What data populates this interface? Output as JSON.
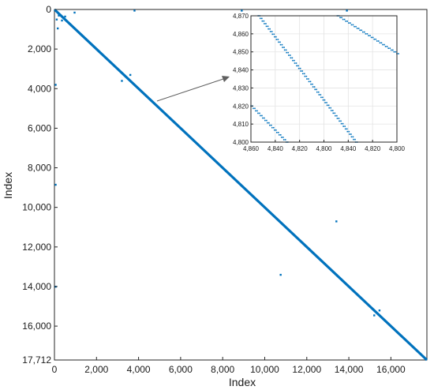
{
  "colors": {
    "marker": "#0072BD",
    "axis": "#262626",
    "grid": "#e3e3e3",
    "arrow": "#606060"
  },
  "chart_data": [
    {
      "type": "scatter",
      "xlabel": "Index",
      "ylabel": "Index",
      "xlim": [
        0,
        17712
      ],
      "ylim": [
        0,
        17712
      ],
      "y_reversed": true,
      "grid": false,
      "xticks": [
        {
          "value": 0,
          "label": "0"
        },
        {
          "value": 2000,
          "label": "2,000"
        },
        {
          "value": 4000,
          "label": "4,000"
        },
        {
          "value": 6000,
          "label": "6,000"
        },
        {
          "value": 8000,
          "label": "8,000"
        },
        {
          "value": 10000,
          "label": "10,000"
        },
        {
          "value": 12000,
          "label": "12,000"
        },
        {
          "value": 14000,
          "label": "14,000"
        },
        {
          "value": 16000,
          "label": "16,000"
        }
      ],
      "yticks": [
        {
          "value": 0,
          "label": "0"
        },
        {
          "value": 2000,
          "label": "2,000"
        },
        {
          "value": 4000,
          "label": "4,000"
        },
        {
          "value": 6000,
          "label": "6,000"
        },
        {
          "value": 8000,
          "label": "8,000"
        },
        {
          "value": 10000,
          "label": "10,000"
        },
        {
          "value": 12000,
          "label": "12,000"
        },
        {
          "value": 14000,
          "label": "14,000"
        },
        {
          "value": 16000,
          "label": "16,000"
        },
        {
          "value": 17712,
          "label": "17,712"
        }
      ],
      "diagonal": {
        "from": [
          0,
          0
        ],
        "to": [
          17712,
          17712
        ]
      },
      "points": [
        {
          "x": 100,
          "y": 500
        },
        {
          "x": 200,
          "y": 300
        },
        {
          "x": 350,
          "y": 550
        },
        {
          "x": 500,
          "y": 350
        },
        {
          "x": 950,
          "y": 150
        },
        {
          "x": 150,
          "y": 950
        },
        {
          "x": 3800,
          "y": 50
        },
        {
          "x": 8900,
          "y": 50
        },
        {
          "x": 13900,
          "y": 50
        },
        {
          "x": 50,
          "y": 3800
        },
        {
          "x": 3200,
          "y": 3600
        },
        {
          "x": 3600,
          "y": 3300
        },
        {
          "x": 50,
          "y": 8850
        },
        {
          "x": 13400,
          "y": 10700
        },
        {
          "x": 10750,
          "y": 13400
        },
        {
          "x": 50,
          "y": 14000
        },
        {
          "x": 15450,
          "y": 15200
        },
        {
          "x": 15200,
          "y": 15450
        }
      ]
    },
    {
      "type": "scatter",
      "inset": true,
      "grid": true,
      "xticks": [
        {
          "pos": 0,
          "label": "4,860"
        },
        {
          "pos": 1,
          "label": "4,840"
        },
        {
          "pos": 2,
          "label": "4,820"
        },
        {
          "pos": 3,
          "label": "4,800"
        },
        {
          "pos": 4,
          "label": "4,840"
        },
        {
          "pos": 5,
          "label": "4,820"
        },
        {
          "pos": 6,
          "label": "4,800"
        }
      ],
      "xrange": [
        0,
        6
      ],
      "ylim": [
        4800,
        4870
      ],
      "y_reversed": false,
      "yticks": [
        4800,
        4810,
        4820,
        4830,
        4840,
        4850,
        4860,
        4870
      ],
      "ytick_labels": [
        "4,800",
        "4,810",
        "4,820",
        "4,830",
        "4,840",
        "4,850",
        "4,860",
        "4,870"
      ],
      "lines": [
        {
          "x0": 0,
          "y0": 4820,
          "x1": 1.45,
          "y1": 4800
        },
        {
          "x0": 0.3,
          "y0": 4870,
          "x1": 4.3,
          "y1": 4800
        },
        {
          "x0": 3.55,
          "y0": 4870,
          "x1": 6,
          "y1": 4849
        }
      ]
    }
  ]
}
